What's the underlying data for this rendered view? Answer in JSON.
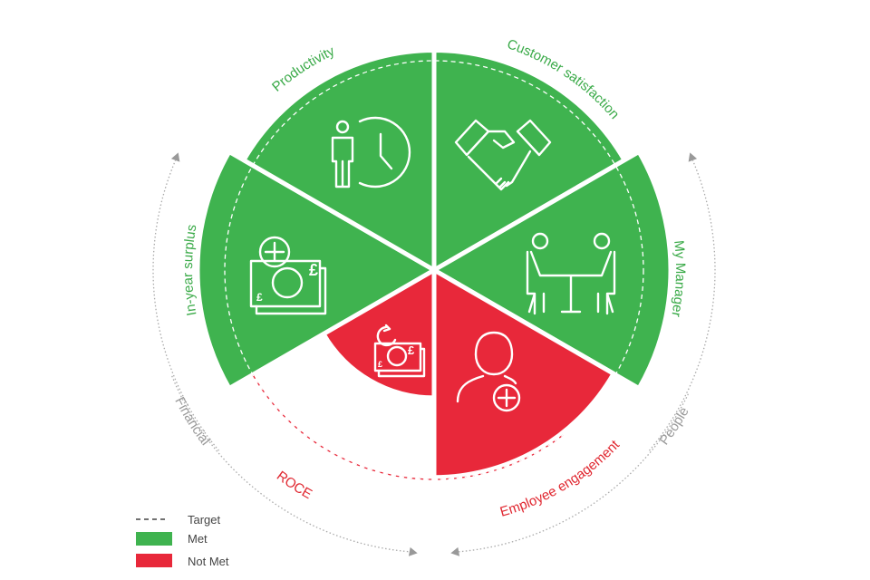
{
  "colors": {
    "met": "#3fb34f",
    "not_met": "#e8283a",
    "target": "#ffffff",
    "group_label": "#9a9a9a",
    "met_label": "#3aaa48",
    "not_met_label": "#e0262f"
  },
  "slices": [
    {
      "label": "Customer satisfaction",
      "status": "met",
      "relative_to_target": 1.05,
      "icon": "handshake-icon"
    },
    {
      "label": "My Manager",
      "status": "met",
      "relative_to_target": 1.13,
      "icon": "meeting-table-icon"
    },
    {
      "label": "Employee engagement",
      "status": "not_met",
      "relative_to_target": 0.99,
      "icon": "person-plus-icon"
    },
    {
      "label": "ROCE",
      "status": "not_met",
      "relative_to_target": 0.61,
      "icon": "money-cycle-icon"
    },
    {
      "label": "In-year surplus",
      "status": "met",
      "relative_to_target": 1.13,
      "icon": "money-plus-icon"
    },
    {
      "label": "Productivity",
      "status": "met",
      "relative_to_target": 1.05,
      "icon": "person-clock-icon"
    }
  ],
  "groups": [
    {
      "label": "Financial",
      "members": [
        "ROCE",
        "In-year surplus"
      ]
    },
    {
      "label": "People",
      "members": [
        "My Manager",
        "Employee engagement"
      ]
    }
  ],
  "legend": [
    {
      "label": "Target",
      "style": "dashed"
    },
    {
      "label": "Met",
      "style": "met"
    },
    {
      "label": "Not Met",
      "style": "not_met"
    }
  ]
}
